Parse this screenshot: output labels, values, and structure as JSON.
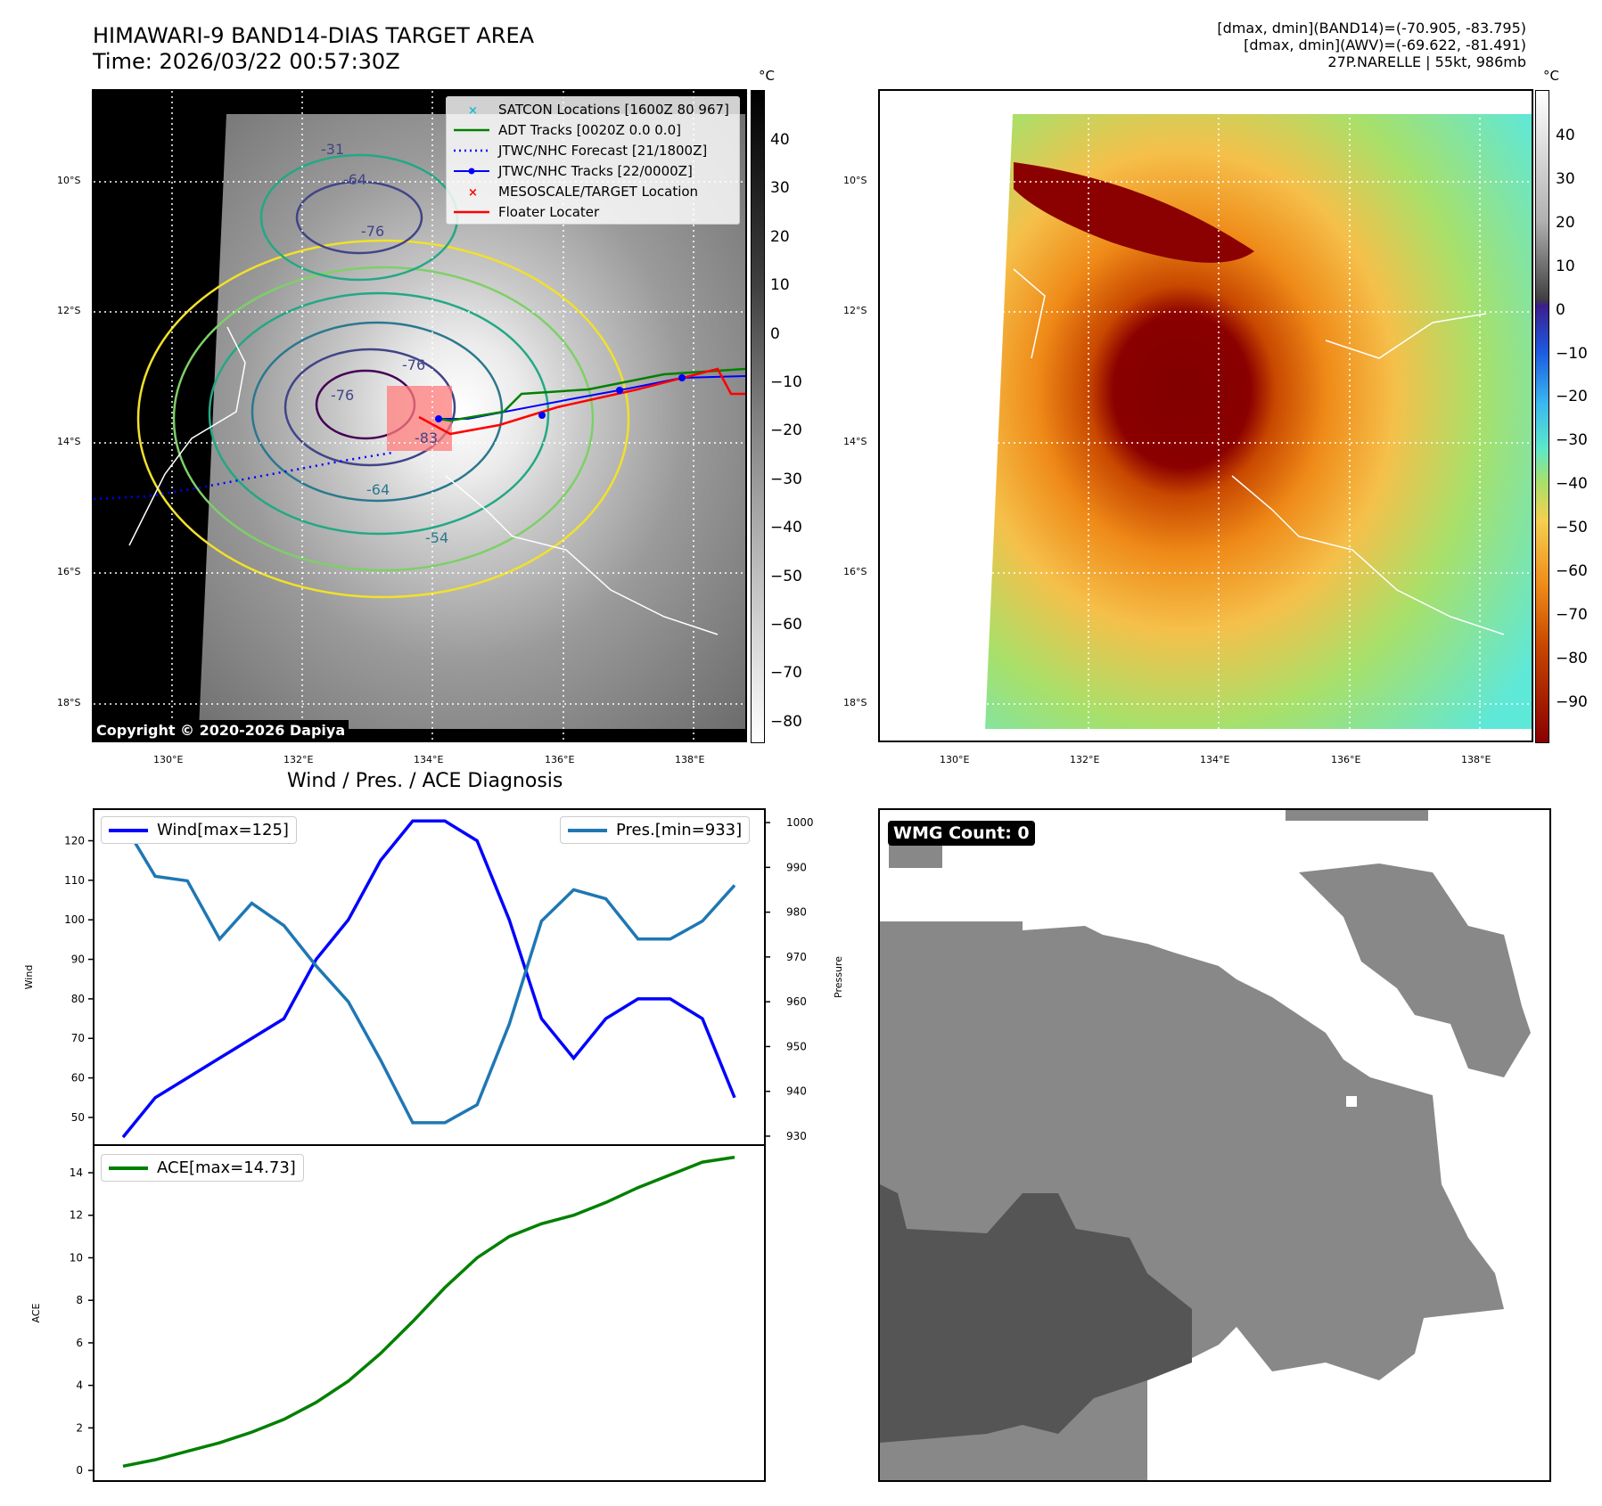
{
  "header": {
    "title_line1": "HIMAWARI-9 BAND14-DIAS TARGET AREA",
    "title_line2": "Time: 2026/03/22 00:57:30Z",
    "stats_line1": "[dmax, dmin](BAND14)=(-70.905, -83.795)",
    "stats_line2": "[dmax, dmin](AWV)=(-69.622, -81.491)",
    "stats_line3": "27P.NARELLE | 55kt, 986mb"
  },
  "map_axes": {
    "lat_labels": [
      "10°S",
      "12°S",
      "14°S",
      "16°S",
      "18°S"
    ],
    "lon_labels": [
      "130°E",
      "132°E",
      "134°E",
      "136°E",
      "138°E"
    ]
  },
  "colorbar_left": {
    "unit": "°C",
    "ticks": [
      "40",
      "30",
      "20",
      "10",
      "0",
      "−10",
      "−20",
      "−30",
      "−40",
      "−50",
      "−60",
      "−70",
      "−80"
    ]
  },
  "colorbar_right": {
    "unit": "°C",
    "ticks": [
      "40",
      "30",
      "20",
      "10",
      "0",
      "−10",
      "−20",
      "−30",
      "−40",
      "−50",
      "−60",
      "−70",
      "−80",
      "−90"
    ]
  },
  "map_legend": [
    {
      "label": "SATCON Locations [1600Z 80 967]",
      "color": "#17becf",
      "kind": "x"
    },
    {
      "label": "ADT Tracks [0020Z 0.0 0.0]",
      "color": "#008000",
      "kind": "line"
    },
    {
      "label": "JTWC/NHC Forecast [21/1800Z]",
      "color": "#0000ff",
      "kind": "dotted"
    },
    {
      "label": "JTWC/NHC Tracks [22/0000Z]",
      "color": "#0000ff",
      "kind": "line-dot"
    },
    {
      "label": "MESOSCALE/TARGET Location",
      "color": "#ff0000",
      "kind": "x"
    },
    {
      "label": "Floater Locater",
      "color": "#ff0000",
      "kind": "line"
    }
  ],
  "contour_labels": [
    "-31",
    "-64",
    "-76",
    "-76",
    "-76",
    "-83",
    "-64",
    "-54"
  ],
  "copyright": "Copyright © 2020-2026 Dapiya",
  "wmg": {
    "label": "WMG Count: 0"
  },
  "chart_data": [
    {
      "type": "line",
      "title": "Wind / Pres. / ACE Diagnosis",
      "ylabel": "Wind",
      "y2label": "Pressure",
      "ylim": [
        43,
        128
      ],
      "y2lim": [
        928,
        1003
      ],
      "yticks": [
        50,
        60,
        70,
        80,
        90,
        100,
        110,
        120
      ],
      "y2ticks": [
        930,
        940,
        950,
        960,
        970,
        980,
        990,
        1000
      ],
      "x": [
        0,
        1,
        2,
        3,
        4,
        5,
        6,
        7,
        8,
        9,
        10,
        11,
        12,
        13,
        14,
        15,
        16,
        17,
        18,
        19
      ],
      "series": [
        {
          "name": "Wind[max=125]",
          "axis": "left",
          "color": "#0000ff",
          "values": [
            45,
            55,
            60,
            65,
            70,
            75,
            90,
            100,
            115,
            125,
            125,
            120,
            100,
            75,
            65,
            75,
            80,
            80,
            75,
            55
          ]
        },
        {
          "name": "Pres.[min=933]",
          "axis": "right",
          "color": "#1f77b4",
          "values": [
            1000,
            988,
            987,
            974,
            982,
            977,
            968,
            960,
            947,
            933,
            933,
            937,
            955,
            978,
            985,
            983,
            974,
            974,
            978,
            986
          ]
        }
      ]
    },
    {
      "type": "line",
      "ylabel": "ACE",
      "ylim": [
        -0.5,
        15.3
      ],
      "yticks": [
        0,
        2,
        4,
        6,
        8,
        10,
        12,
        14
      ],
      "x": [
        0,
        1,
        2,
        3,
        4,
        5,
        6,
        7,
        8,
        9,
        10,
        11,
        12,
        13,
        14,
        15,
        16,
        17,
        18,
        19
      ],
      "series": [
        {
          "name": "ACE[max=14.73]",
          "color": "#008000",
          "values": [
            0.2,
            0.5,
            0.9,
            1.3,
            1.8,
            2.4,
            3.2,
            4.2,
            5.5,
            7.0,
            8.6,
            10.0,
            11.0,
            11.6,
            12.0,
            12.6,
            13.3,
            13.9,
            14.5,
            14.73
          ]
        }
      ]
    }
  ]
}
